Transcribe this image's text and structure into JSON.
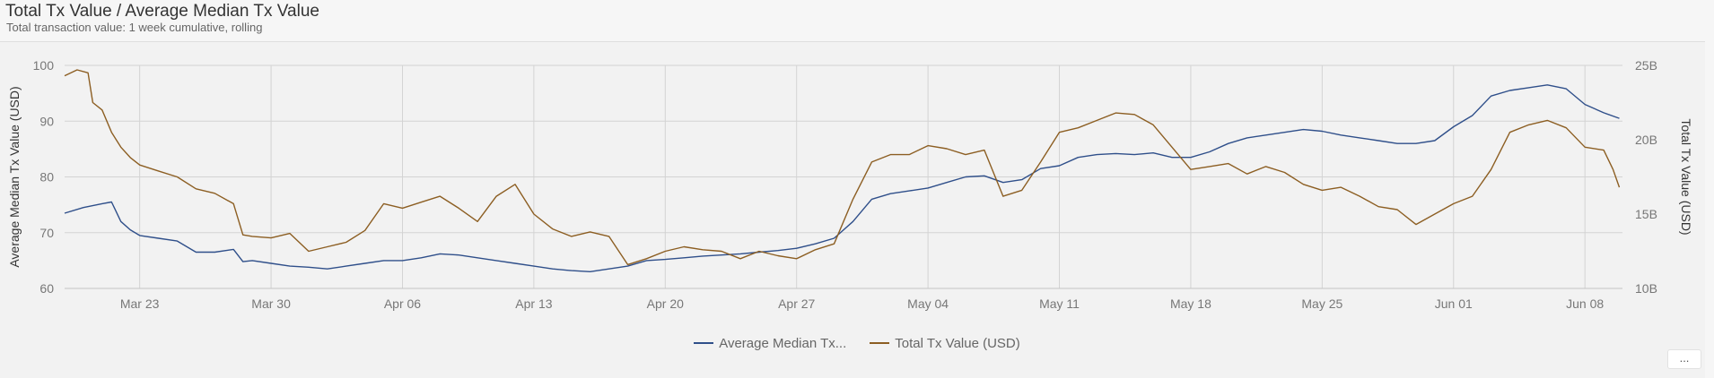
{
  "header": {
    "title": "Total Tx Value / Average Median Tx Value",
    "subtitle": "Total transaction value: 1 week cumulative, rolling"
  },
  "more_button": {
    "label": "..."
  },
  "colors": {
    "median": "#2f4f8a",
    "total": "#8c5e22",
    "grid": "#d3d3d3",
    "axis_text": "#777777"
  },
  "chart_data": {
    "type": "line",
    "x_range": [
      "2020-03-19",
      "2020-06-10"
    ],
    "xticks": [
      {
        "date": "2020-03-23",
        "label": "Mar 23"
      },
      {
        "date": "2020-03-30",
        "label": "Mar 30"
      },
      {
        "date": "2020-04-06",
        "label": "Apr 06"
      },
      {
        "date": "2020-04-13",
        "label": "Apr 13"
      },
      {
        "date": "2020-04-20",
        "label": "Apr 20"
      },
      {
        "date": "2020-04-27",
        "label": "Apr 27"
      },
      {
        "date": "2020-05-04",
        "label": "May 04"
      },
      {
        "date": "2020-05-11",
        "label": "May 11"
      },
      {
        "date": "2020-05-18",
        "label": "May 18"
      },
      {
        "date": "2020-05-25",
        "label": "May 25"
      },
      {
        "date": "2020-06-01",
        "label": "Jun 01"
      },
      {
        "date": "2020-06-08",
        "label": "Jun 08"
      }
    ],
    "y_left": {
      "label": "Average Median Tx Value (USD)",
      "range": [
        60,
        100
      ],
      "ticks": [
        {
          "value": 60,
          "label": "60"
        },
        {
          "value": 70,
          "label": "70"
        },
        {
          "value": 80,
          "label": "80"
        },
        {
          "value": 90,
          "label": "90"
        },
        {
          "value": 100,
          "label": "100"
        }
      ]
    },
    "y_right": {
      "label": "Total Tx Value (USD)",
      "range": [
        10,
        25
      ],
      "unit": "B",
      "ticks": [
        {
          "value": 10,
          "label": "10B"
        },
        {
          "value": 15,
          "label": "15B"
        },
        {
          "value": 20,
          "label": "20B"
        },
        {
          "value": 25,
          "label": "25B"
        }
      ]
    },
    "grid": true,
    "legend_position": "bottom-center",
    "series": [
      {
        "name": "Average Median Tx Value (USD)",
        "legend_label": "Average Median Tx...",
        "axis": "left",
        "color": "#2f4f8a",
        "points": [
          [
            "2020-03-19",
            73.5
          ],
          [
            "2020-03-20",
            74.5
          ],
          [
            "2020-03-21",
            75.2
          ],
          [
            "2020-03-21T12",
            75.5
          ],
          [
            "2020-03-22",
            72.0
          ],
          [
            "2020-03-22T12",
            70.5
          ],
          [
            "2020-03-23",
            69.5
          ],
          [
            "2020-03-24",
            69.0
          ],
          [
            "2020-03-25",
            68.5
          ],
          [
            "2020-03-26",
            66.5
          ],
          [
            "2020-03-27",
            66.5
          ],
          [
            "2020-03-28",
            67.0
          ],
          [
            "2020-03-28T12",
            64.8
          ],
          [
            "2020-03-29",
            65.0
          ],
          [
            "2020-03-30",
            64.5
          ],
          [
            "2020-03-31",
            64.0
          ],
          [
            "2020-04-01",
            63.8
          ],
          [
            "2020-04-02",
            63.5
          ],
          [
            "2020-04-03",
            64.0
          ],
          [
            "2020-04-04",
            64.5
          ],
          [
            "2020-04-05",
            65.0
          ],
          [
            "2020-04-06",
            65.0
          ],
          [
            "2020-04-07",
            65.5
          ],
          [
            "2020-04-08",
            66.2
          ],
          [
            "2020-04-09",
            66.0
          ],
          [
            "2020-04-10",
            65.5
          ],
          [
            "2020-04-11",
            65.0
          ],
          [
            "2020-04-12",
            64.5
          ],
          [
            "2020-04-13",
            64.0
          ],
          [
            "2020-04-14",
            63.5
          ],
          [
            "2020-04-15",
            63.2
          ],
          [
            "2020-04-16",
            63.0
          ],
          [
            "2020-04-17",
            63.5
          ],
          [
            "2020-04-18",
            64.0
          ],
          [
            "2020-04-19",
            65.0
          ],
          [
            "2020-04-20",
            65.2
          ],
          [
            "2020-04-21",
            65.5
          ],
          [
            "2020-04-22",
            65.8
          ],
          [
            "2020-04-23",
            66.0
          ],
          [
            "2020-04-24",
            66.2
          ],
          [
            "2020-04-25",
            66.5
          ],
          [
            "2020-04-26",
            66.8
          ],
          [
            "2020-04-27",
            67.2
          ],
          [
            "2020-04-28",
            68.0
          ],
          [
            "2020-04-29",
            69.0
          ],
          [
            "2020-04-30",
            72.0
          ],
          [
            "2020-05-01",
            76.0
          ],
          [
            "2020-05-02",
            77.0
          ],
          [
            "2020-05-03",
            77.5
          ],
          [
            "2020-05-04",
            78.0
          ],
          [
            "2020-05-05",
            79.0
          ],
          [
            "2020-05-06",
            80.0
          ],
          [
            "2020-05-07",
            80.2
          ],
          [
            "2020-05-08",
            79.0
          ],
          [
            "2020-05-09",
            79.5
          ],
          [
            "2020-05-10",
            81.5
          ],
          [
            "2020-05-11",
            82.0
          ],
          [
            "2020-05-12",
            83.5
          ],
          [
            "2020-05-13",
            84.0
          ],
          [
            "2020-05-14",
            84.2
          ],
          [
            "2020-05-15",
            84.0
          ],
          [
            "2020-05-16",
            84.3
          ],
          [
            "2020-05-17",
            83.5
          ],
          [
            "2020-05-18",
            83.5
          ],
          [
            "2020-05-19",
            84.5
          ],
          [
            "2020-05-20",
            86.0
          ],
          [
            "2020-05-21",
            87.0
          ],
          [
            "2020-05-22",
            87.5
          ],
          [
            "2020-05-23",
            88.0
          ],
          [
            "2020-05-24",
            88.5
          ],
          [
            "2020-05-25",
            88.2
          ],
          [
            "2020-05-26",
            87.5
          ],
          [
            "2020-05-27",
            87.0
          ],
          [
            "2020-05-28",
            86.5
          ],
          [
            "2020-05-29",
            86.0
          ],
          [
            "2020-05-30",
            86.0
          ],
          [
            "2020-05-31",
            86.5
          ],
          [
            "2020-06-01",
            89.0
          ],
          [
            "2020-06-02",
            91.0
          ],
          [
            "2020-06-03",
            94.5
          ],
          [
            "2020-06-04",
            95.5
          ],
          [
            "2020-06-05",
            96.0
          ],
          [
            "2020-06-06",
            96.5
          ],
          [
            "2020-06-07",
            95.8
          ],
          [
            "2020-06-08",
            93.0
          ],
          [
            "2020-06-09",
            91.5
          ],
          [
            "2020-06-09T20",
            90.5
          ]
        ]
      },
      {
        "name": "Total Tx Value (USD)",
        "legend_label": "Total Tx Value (USD)",
        "axis": "right",
        "color": "#8c5e22",
        "points": [
          [
            "2020-03-19",
            24.3
          ],
          [
            "2020-03-19T16",
            24.7
          ],
          [
            "2020-03-20T06",
            24.5
          ],
          [
            "2020-03-20T12",
            22.5
          ],
          [
            "2020-03-21",
            22.0
          ],
          [
            "2020-03-21T12",
            20.5
          ],
          [
            "2020-03-22",
            19.5
          ],
          [
            "2020-03-22T12",
            18.8
          ],
          [
            "2020-03-23",
            18.3
          ],
          [
            "2020-03-24",
            17.9
          ],
          [
            "2020-03-25",
            17.5
          ],
          [
            "2020-03-26",
            16.7
          ],
          [
            "2020-03-27",
            16.4
          ],
          [
            "2020-03-28",
            15.7
          ],
          [
            "2020-03-28T12",
            13.6
          ],
          [
            "2020-03-29",
            13.5
          ],
          [
            "2020-03-30",
            13.4
          ],
          [
            "2020-03-31",
            13.7
          ],
          [
            "2020-04-01",
            12.5
          ],
          [
            "2020-04-02",
            12.8
          ],
          [
            "2020-04-03",
            13.1
          ],
          [
            "2020-04-04",
            13.9
          ],
          [
            "2020-04-05",
            15.7
          ],
          [
            "2020-04-06",
            15.4
          ],
          [
            "2020-04-07",
            15.8
          ],
          [
            "2020-04-08",
            16.2
          ],
          [
            "2020-04-09",
            15.4
          ],
          [
            "2020-04-10",
            14.5
          ],
          [
            "2020-04-11",
            16.2
          ],
          [
            "2020-04-12",
            17.0
          ],
          [
            "2020-04-13",
            15.0
          ],
          [
            "2020-04-14",
            14.0
          ],
          [
            "2020-04-15",
            13.5
          ],
          [
            "2020-04-16",
            13.8
          ],
          [
            "2020-04-17",
            13.5
          ],
          [
            "2020-04-18",
            11.6
          ],
          [
            "2020-04-19",
            12.0
          ],
          [
            "2020-04-20",
            12.5
          ],
          [
            "2020-04-21",
            12.8
          ],
          [
            "2020-04-22",
            12.6
          ],
          [
            "2020-04-23",
            12.5
          ],
          [
            "2020-04-24",
            12.0
          ],
          [
            "2020-04-25",
            12.5
          ],
          [
            "2020-04-26",
            12.2
          ],
          [
            "2020-04-27",
            12.0
          ],
          [
            "2020-04-28",
            12.6
          ],
          [
            "2020-04-29",
            13.0
          ],
          [
            "2020-04-30",
            16.0
          ],
          [
            "2020-05-01",
            18.5
          ],
          [
            "2020-05-02",
            19.0
          ],
          [
            "2020-05-03",
            19.0
          ],
          [
            "2020-05-04",
            19.6
          ],
          [
            "2020-05-05",
            19.4
          ],
          [
            "2020-05-06",
            19.0
          ],
          [
            "2020-05-07",
            19.3
          ],
          [
            "2020-05-08",
            16.2
          ],
          [
            "2020-05-09",
            16.6
          ],
          [
            "2020-05-10",
            18.5
          ],
          [
            "2020-05-11",
            20.5
          ],
          [
            "2020-05-12",
            20.8
          ],
          [
            "2020-05-13",
            21.3
          ],
          [
            "2020-05-14",
            21.8
          ],
          [
            "2020-05-15",
            21.7
          ],
          [
            "2020-05-16",
            21.0
          ],
          [
            "2020-05-17",
            19.5
          ],
          [
            "2020-05-18",
            18.0
          ],
          [
            "2020-05-19",
            18.2
          ],
          [
            "2020-05-20",
            18.4
          ],
          [
            "2020-05-21",
            17.7
          ],
          [
            "2020-05-22",
            18.2
          ],
          [
            "2020-05-23",
            17.8
          ],
          [
            "2020-05-24",
            17.0
          ],
          [
            "2020-05-25",
            16.6
          ],
          [
            "2020-05-26",
            16.8
          ],
          [
            "2020-05-27",
            16.2
          ],
          [
            "2020-05-28",
            15.5
          ],
          [
            "2020-05-29",
            15.3
          ],
          [
            "2020-05-30",
            14.3
          ],
          [
            "2020-05-31",
            15.0
          ],
          [
            "2020-06-01",
            15.7
          ],
          [
            "2020-06-02",
            16.2
          ],
          [
            "2020-06-03",
            18.0
          ],
          [
            "2020-06-04",
            20.5
          ],
          [
            "2020-06-05",
            21.0
          ],
          [
            "2020-06-06",
            21.3
          ],
          [
            "2020-06-07",
            20.8
          ],
          [
            "2020-06-08",
            19.5
          ],
          [
            "2020-06-09",
            19.3
          ],
          [
            "2020-06-09T12",
            18.0
          ],
          [
            "2020-06-09T20",
            16.8
          ]
        ]
      }
    ]
  }
}
